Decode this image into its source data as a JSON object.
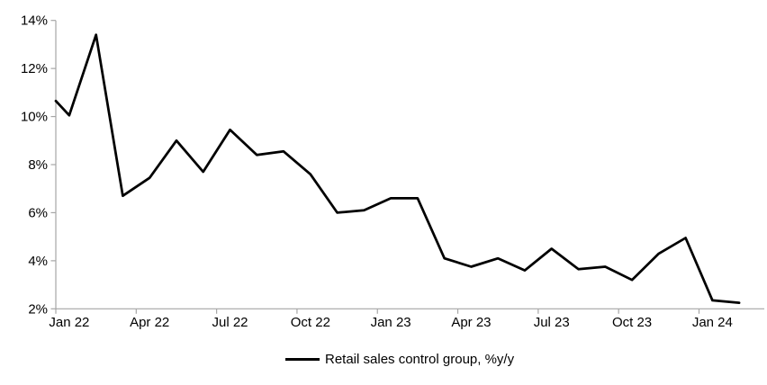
{
  "chart_data": {
    "type": "line",
    "title": "",
    "background": "#ffffff",
    "grid": false,
    "axis_color": "#a6a6a6",
    "text_color": "#000000",
    "legend": {
      "position": "bottom-center",
      "label": "Retail sales control group, %y/y"
    },
    "y_axis": {
      "min": 2,
      "max": 14,
      "step": 2,
      "tick_labels": [
        "2%",
        "4%",
        "6%",
        "8%",
        "10%",
        "12%",
        "14%"
      ]
    },
    "x_axis": {
      "tick_interval_months": 3,
      "tick_labels": [
        "Jan 22",
        "Apr 22",
        "Jul 22",
        "Oct 22",
        "Jan 23",
        "Apr 23",
        "Jul 23",
        "Oct 23",
        "Jan 24"
      ]
    },
    "series": [
      {
        "name": "Retail sales control group, %y/y",
        "color": "#000000",
        "lead_in_value_at_axis": 10.65,
        "x": [
          "Jan 22",
          "Feb 22",
          "Mar 22",
          "Apr 22",
          "May 22",
          "Jun 22",
          "Jul 22",
          "Aug 22",
          "Sep 22",
          "Oct 22",
          "Nov 22",
          "Dec 22",
          "Jan 23",
          "Feb 23",
          "Mar 23",
          "Apr 23",
          "May 23",
          "Jun 23",
          "Jul 23",
          "Aug 23",
          "Sep 23",
          "Oct 23",
          "Nov 23",
          "Dec 23",
          "Jan 24",
          "Feb 24"
        ],
        "values": [
          10.05,
          13.4,
          6.7,
          7.45,
          9.0,
          7.7,
          9.45,
          8.4,
          8.55,
          7.6,
          6.0,
          6.1,
          6.6,
          6.6,
          4.1,
          3.75,
          4.1,
          3.6,
          4.5,
          3.65,
          3.75,
          3.2,
          4.3,
          4.95,
          2.35,
          2.25
        ]
      }
    ]
  }
}
